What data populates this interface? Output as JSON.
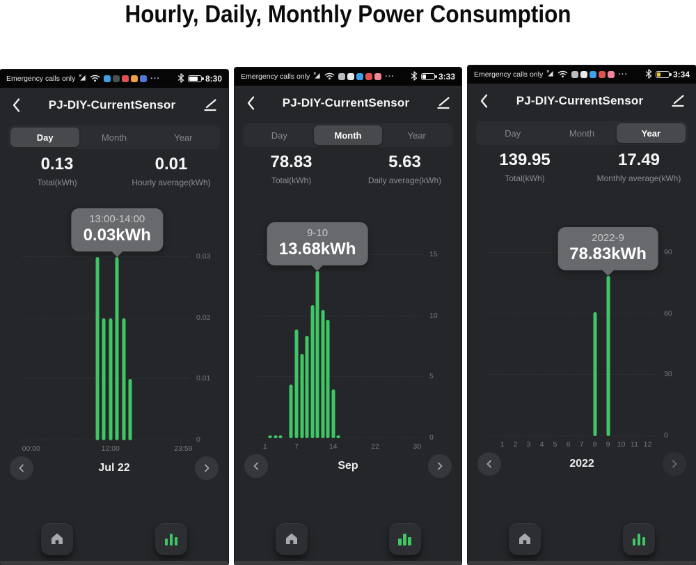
{
  "page_title": "Hourly, Daily, Monthly Power Consumption",
  "colors": {
    "bar_green": "#3ec764",
    "app_bg": "#242629",
    "statusbar_bg": "#060606",
    "tab_pill": "#47494d",
    "tooltip_bg": "#67696c"
  },
  "phones": [
    {
      "status_bar": {
        "carrier": "Emergency calls only",
        "notif_colors": [
          "#3f9fe8",
          "#4a4f53",
          "#e05252",
          "#eda03f",
          "#5577d8"
        ],
        "ellipsis": "···",
        "battery_pct": 75,
        "battery_color": "#ffffff",
        "time": "8:30"
      },
      "header": {
        "title": "PJ-DIY-CurrentSensor"
      },
      "tabs": {
        "labels": [
          "Day",
          "Month",
          "Year"
        ],
        "selected_index": 0
      },
      "stats": [
        {
          "value": "0.13",
          "label": "Total(kWh)"
        },
        {
          "value": "0.01",
          "label": "Hourly average(kWh)"
        }
      ],
      "tooltip": {
        "line1": "13:00-14:00",
        "line2": "0.03kWh"
      },
      "nav": {
        "label": "Jul 22",
        "dim_next": false
      }
    },
    {
      "status_bar": {
        "carrier": "Emergency calls only",
        "notif_colors": [
          "#b9bdc0",
          "#e8e8e8",
          "#3f9fe8",
          "#e05252",
          "#ef8799"
        ],
        "ellipsis": "···",
        "battery_pct": 30,
        "battery_color": "#ffffff",
        "time": "3:33"
      },
      "header": {
        "title": "PJ-DIY-CurrentSensor"
      },
      "tabs": {
        "labels": [
          "Day",
          "Month",
          "Year"
        ],
        "selected_index": 1
      },
      "stats": [
        {
          "value": "78.83",
          "label": "Total(kWh)"
        },
        {
          "value": "5.63",
          "label": "Daily average(kWh)"
        }
      ],
      "tooltip": {
        "line1": "9-10",
        "line2": "13.68kWh"
      },
      "nav": {
        "label": "Sep",
        "dim_next": false
      }
    },
    {
      "status_bar": {
        "carrier": "Emergency calls only",
        "notif_colors": [
          "#b9bdc0",
          "#e8e8e8",
          "#3f9fe8",
          "#e05252",
          "#ef8799"
        ],
        "ellipsis": "···",
        "battery_pct": 30,
        "battery_color": "#e9c43e",
        "time": "3:34"
      },
      "header": {
        "title": "PJ-DIY-CurrentSensor"
      },
      "tabs": {
        "labels": [
          "Day",
          "Month",
          "Year"
        ],
        "selected_index": 2
      },
      "stats": [
        {
          "value": "139.95",
          "label": "Total(kWh)"
        },
        {
          "value": "17.49",
          "label": "Monthly average(kWh)"
        }
      ],
      "tooltip": {
        "line1": "2022-9",
        "line2": "78.83kWh"
      },
      "nav": {
        "label": "2022",
        "dim_next": true
      }
    }
  ],
  "chart_data": [
    {
      "type": "bar",
      "title": "Hourly consumption, Jul 22 (kWh)",
      "x_slots": 24,
      "bars": [
        {
          "x": 10,
          "y": 0.03
        },
        {
          "x": 11,
          "y": 0.02
        },
        {
          "x": 12,
          "y": 0.02
        },
        {
          "x": 13,
          "y": 0.03
        },
        {
          "x": 14,
          "y": 0.02
        },
        {
          "x": 15,
          "y": 0.01
        }
      ],
      "highlight_x": 13,
      "ylim": [
        0,
        0.0315
      ],
      "y_gridlines": [
        {
          "v": 0,
          "label": "0"
        },
        {
          "v": 0.01,
          "label": "0.01"
        },
        {
          "v": 0.02,
          "label": "0.02"
        },
        {
          "v": 0.03,
          "label": "0.03"
        }
      ],
      "x_ticks": [
        {
          "x": 0,
          "label": "00:00"
        },
        {
          "x": 12,
          "label": "12:00"
        },
        {
          "x": 23,
          "label": "23:59"
        }
      ]
    },
    {
      "type": "bar",
      "title": "Daily consumption, Sep (kWh)",
      "x_slots": 30,
      "bars": [
        {
          "x": 1,
          "y": 0.15
        },
        {
          "x": 2,
          "y": 0.15
        },
        {
          "x": 3,
          "y": 0.15
        },
        {
          "x": 5,
          "y": 4.4
        },
        {
          "x": 6,
          "y": 8.9
        },
        {
          "x": 7,
          "y": 6.9
        },
        {
          "x": 8,
          "y": 8.4
        },
        {
          "x": 9,
          "y": 10.9
        },
        {
          "x": 10,
          "y": 13.68
        },
        {
          "x": 11,
          "y": 10.5
        },
        {
          "x": 12,
          "y": 9.7
        },
        {
          "x": 13,
          "y": 4.0
        },
        {
          "x": 14,
          "y": 0.2
        }
      ],
      "highlight_x": 10,
      "ylim": [
        0,
        15.75
      ],
      "y_gridlines": [
        {
          "v": 0,
          "label": "0"
        },
        {
          "v": 5,
          "label": "5"
        },
        {
          "v": 10,
          "label": "10"
        },
        {
          "v": 15,
          "label": "15"
        }
      ],
      "x_ticks": [
        {
          "x": 0,
          "label": "1"
        },
        {
          "x": 6,
          "label": "7"
        },
        {
          "x": 13,
          "label": "14"
        },
        {
          "x": 21,
          "label": "22"
        },
        {
          "x": 29,
          "label": "30"
        }
      ]
    },
    {
      "type": "bar",
      "title": "Monthly consumption, 2022 (kWh)",
      "x_slots": 12,
      "bars": [
        {
          "x": 7,
          "y": 61.12
        },
        {
          "x": 8,
          "y": 78.83
        }
      ],
      "highlight_x": 8,
      "ylim": [
        0,
        94.5
      ],
      "y_gridlines": [
        {
          "v": 0,
          "label": "0"
        },
        {
          "v": 30,
          "label": "30"
        },
        {
          "v": 60,
          "label": "60"
        },
        {
          "v": 90,
          "label": "90"
        }
      ],
      "x_ticks": [
        {
          "x": 0,
          "label": "1"
        },
        {
          "x": 1,
          "label": "2"
        },
        {
          "x": 2,
          "label": "3"
        },
        {
          "x": 3,
          "label": "4"
        },
        {
          "x": 4,
          "label": "5"
        },
        {
          "x": 5,
          "label": "6"
        },
        {
          "x": 6,
          "label": "7"
        },
        {
          "x": 7,
          "label": "8"
        },
        {
          "x": 8,
          "label": "9"
        },
        {
          "x": 9,
          "label": "10"
        },
        {
          "x": 10,
          "label": "11"
        },
        {
          "x": 11,
          "label": "12"
        }
      ]
    }
  ]
}
